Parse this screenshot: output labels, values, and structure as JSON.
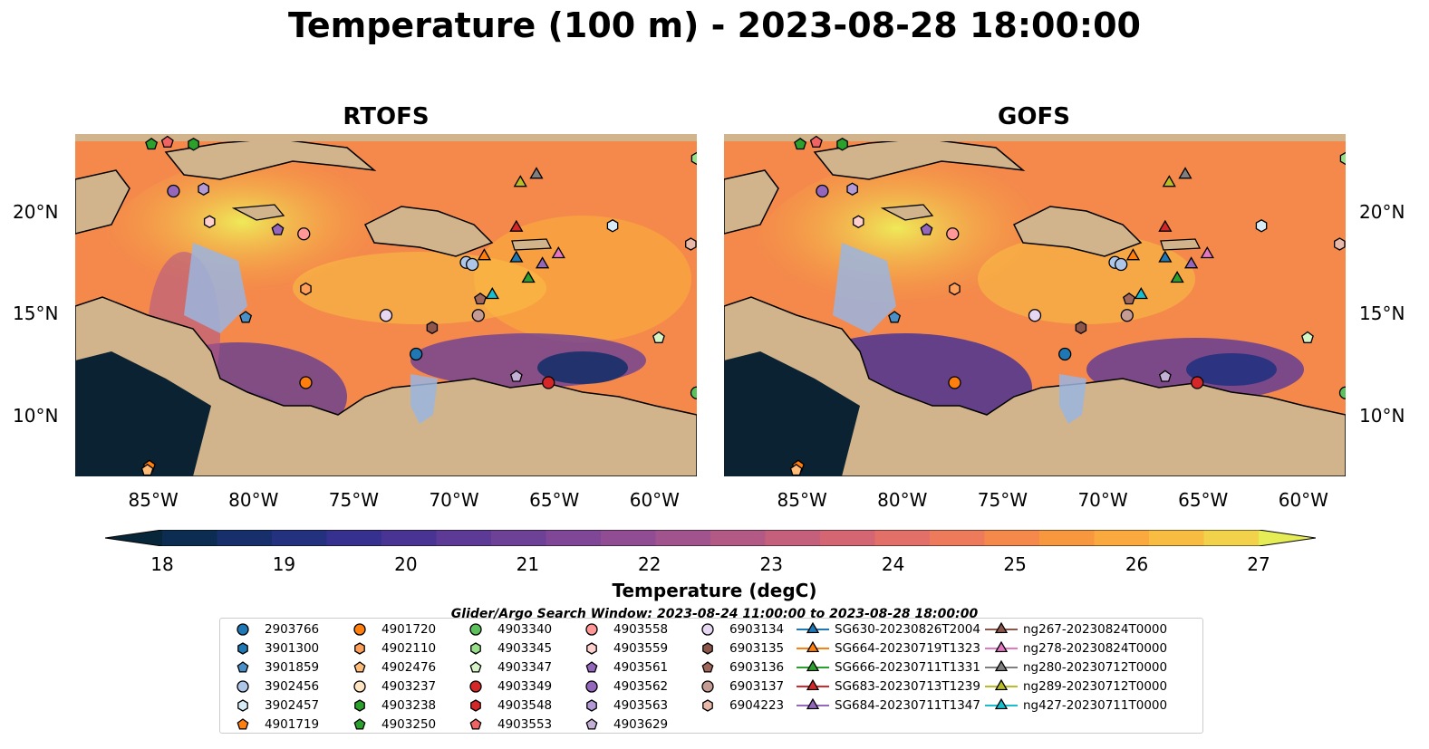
{
  "title": "Temperature (100 m) - 2023-08-28 18:00:00",
  "panels": [
    {
      "title": "RTOFS"
    },
    {
      "title": "GOFS"
    }
  ],
  "lat_ticks": [
    "20°N",
    "15°N",
    "10°N"
  ],
  "lon_ticks": [
    "85°W",
    "80°W",
    "75°W",
    "70°W",
    "65°W",
    "60°W"
  ],
  "colorbar": {
    "label": "Temperature (degC)",
    "ticks": [
      "18",
      "19",
      "20",
      "21",
      "22",
      "23",
      "24",
      "25",
      "26",
      "27"
    ],
    "min": 18,
    "max": 27,
    "colors": [
      "#07263a",
      "#0c2c52",
      "#172f6a",
      "#24317f",
      "#36318f",
      "#4a3493",
      "#5c3a96",
      "#6d4196",
      "#7f4795",
      "#904d93",
      "#a1538d",
      "#b35985",
      "#c45f7c",
      "#d46673",
      "#e26f68",
      "#ed7b5b",
      "#f4894b",
      "#f7983f",
      "#f9a93d",
      "#f8bc42",
      "#f1d24a",
      "#e6ec55"
    ]
  },
  "search_window": "Glider/Argo Search Window: 2023-08-24 11:00:00 to 2023-08-28 18:00:00",
  "legend": [
    {
      "label": "2903766",
      "marker": "circle",
      "color": "#1f77b4"
    },
    {
      "label": "3901300",
      "marker": "hexagon",
      "color": "#1f77b4"
    },
    {
      "label": "3901859",
      "marker": "pentagon",
      "color": "#4a90c8"
    },
    {
      "label": "3902456",
      "marker": "circle",
      "color": "#aec7e8"
    },
    {
      "label": "3902457",
      "marker": "hexagon",
      "color": "#d8ecf8"
    },
    {
      "label": "4901719",
      "marker": "pentagon",
      "color": "#ff7f0e"
    },
    {
      "label": "4901720",
      "marker": "circle",
      "color": "#ff7f0e"
    },
    {
      "label": "4902110",
      "marker": "hexagon",
      "color": "#ffa05a"
    },
    {
      "label": "4902476",
      "marker": "pentagon",
      "color": "#ffbb78"
    },
    {
      "label": "4903237",
      "marker": "circle",
      "color": "#ffe4c4"
    },
    {
      "label": "4903238",
      "marker": "hexagon",
      "color": "#2ca02c"
    },
    {
      "label": "4903250",
      "marker": "pentagon",
      "color": "#2ca02c"
    },
    {
      "label": "4903340",
      "marker": "circle",
      "color": "#5cc15c"
    },
    {
      "label": "4903345",
      "marker": "hexagon",
      "color": "#98df8a"
    },
    {
      "label": "4903347",
      "marker": "pentagon",
      "color": "#d5f5c8"
    },
    {
      "label": "4903349",
      "marker": "circle",
      "color": "#d62728"
    },
    {
      "label": "4903548",
      "marker": "hexagon",
      "color": "#d62728"
    },
    {
      "label": "4903553",
      "marker": "pentagon",
      "color": "#f06363"
    },
    {
      "label": "4903558",
      "marker": "circle",
      "color": "#ff9896"
    },
    {
      "label": "4903559",
      "marker": "hexagon",
      "color": "#ffd0ce"
    },
    {
      "label": "4903561",
      "marker": "pentagon",
      "color": "#9467bd"
    },
    {
      "label": "4903562",
      "marker": "circle",
      "color": "#9467bd"
    },
    {
      "label": "4903563",
      "marker": "hexagon",
      "color": "#b39ad6"
    },
    {
      "label": "4903629",
      "marker": "pentagon",
      "color": "#c5b0d5"
    },
    {
      "label": "6903134",
      "marker": "circle",
      "color": "#e6d8f2"
    },
    {
      "label": "6903135",
      "marker": "hexagon",
      "color": "#8c564b"
    },
    {
      "label": "6903136",
      "marker": "pentagon",
      "color": "#a0665a"
    },
    {
      "label": "6903137",
      "marker": "circle",
      "color": "#c49c94"
    },
    {
      "label": "6904223",
      "marker": "hexagon",
      "color": "#e8b8a8"
    },
    {
      "label": "SG630-20230826T2004",
      "marker": "triangle",
      "color": "#1f77b4"
    },
    {
      "label": "SG664-20230719T1323",
      "marker": "triangle",
      "color": "#ff7f0e"
    },
    {
      "label": "SG666-20230711T1331",
      "marker": "triangle",
      "color": "#2ca02c"
    },
    {
      "label": "SG683-20230713T1239",
      "marker": "triangle",
      "color": "#d62728"
    },
    {
      "label": "SG684-20230711T1347",
      "marker": "triangle",
      "color": "#9467bd"
    },
    {
      "label": "ng267-20230824T0000",
      "marker": "triangle",
      "color": "#8c564b"
    },
    {
      "label": "ng278-20230824T0000",
      "marker": "triangle",
      "color": "#e377c2"
    },
    {
      "label": "ng280-20230712T0000",
      "marker": "triangle",
      "color": "#7f7f7f"
    },
    {
      "label": "ng289-20230712T0000",
      "marker": "triangle",
      "color": "#bcbd22"
    },
    {
      "label": "ng427-20230711T0000",
      "marker": "triangle",
      "color": "#17becf"
    }
  ],
  "observations": [
    {
      "id": "4903250",
      "marker": "pentagon",
      "color": "#2ca02c",
      "lon": -85.2,
      "lat": 23.3
    },
    {
      "id": "4903553",
      "marker": "pentagon",
      "color": "#f06363",
      "lon": -84.4,
      "lat": 23.4
    },
    {
      "id": "4903238",
      "marker": "hexagon",
      "color": "#2ca02c",
      "lon": -83.1,
      "lat": 23.3
    },
    {
      "id": "4903562",
      "marker": "circle",
      "color": "#9467bd",
      "lon": -84.1,
      "lat": 21.0
    },
    {
      "id": "4903563",
      "marker": "hexagon",
      "color": "#b39ad6",
      "lon": -82.6,
      "lat": 21.1
    },
    {
      "id": "4903559",
      "marker": "hexagon",
      "color": "#ffd0ce",
      "lon": -82.3,
      "lat": 19.5
    },
    {
      "id": "4903561",
      "marker": "pentagon",
      "color": "#9467bd",
      "lon": -78.9,
      "lat": 19.1
    },
    {
      "id": "4903558",
      "marker": "circle",
      "color": "#ff9896",
      "lon": -77.6,
      "lat": 18.9
    },
    {
      "id": "4902110",
      "marker": "hexagon",
      "color": "#ffa05a",
      "lon": -77.5,
      "lat": 16.2
    },
    {
      "id": "3901859",
      "marker": "pentagon",
      "color": "#4a90c8",
      "lon": -80.5,
      "lat": 14.8
    },
    {
      "id": "4901720",
      "marker": "circle",
      "color": "#ff7f0e",
      "lon": -77.5,
      "lat": 11.6
    },
    {
      "id": "4901719",
      "marker": "pentagon",
      "color": "#ff7f0e",
      "lon": -85.3,
      "lat": 7.5
    },
    {
      "id": "6903134",
      "marker": "circle",
      "color": "#e6d8f2",
      "lon": -73.5,
      "lat": 14.9
    },
    {
      "id": "6903135",
      "marker": "hexagon",
      "color": "#8c564b",
      "lon": -71.2,
      "lat": 14.3
    },
    {
      "id": "2903766",
      "marker": "circle",
      "color": "#1f77b4",
      "lon": -72.0,
      "lat": 13.0
    },
    {
      "id": "3902456",
      "marker": "circle",
      "color": "#aec7e8",
      "lon": -69.5,
      "lat": 17.5
    },
    {
      "id": "3902456b",
      "marker": "circle",
      "color": "#aec7e8",
      "lon": -69.2,
      "lat": 17.4
    },
    {
      "id": "6903137",
      "marker": "circle",
      "color": "#c49c94",
      "lon": -68.9,
      "lat": 14.9
    },
    {
      "id": "6903136",
      "marker": "pentagon",
      "color": "#a0665a",
      "lon": -68.8,
      "lat": 15.7
    },
    {
      "id": "4903629",
      "marker": "pentagon",
      "color": "#c5b0d5",
      "lon": -67.0,
      "lat": 11.9
    },
    {
      "id": "4903349",
      "marker": "circle",
      "color": "#d62728",
      "lon": -65.4,
      "lat": 11.6
    },
    {
      "id": "3902457",
      "marker": "hexagon",
      "color": "#d8ecf8",
      "lon": -62.2,
      "lat": 19.3
    },
    {
      "id": "4903347",
      "marker": "pentagon",
      "color": "#d5f5c8",
      "lon": -59.9,
      "lat": 13.8
    },
    {
      "id": "4903340",
      "marker": "circle",
      "color": "#5cc15c",
      "lon": -58.0,
      "lat": 11.1
    },
    {
      "id": "4903345",
      "marker": "hexagon",
      "color": "#98df8a",
      "lon": -58.0,
      "lat": 22.6
    },
    {
      "id": "6904223",
      "marker": "hexagon",
      "color": "#e8b8a8",
      "lon": -58.3,
      "lat": 18.4
    },
    {
      "id": "4902476",
      "marker": "pentagon",
      "color": "#ffbb78",
      "lon": -85.4,
      "lat": 7.3
    },
    {
      "id": "ng289",
      "marker": "triangle",
      "color": "#bcbd22",
      "lon": -66.8,
      "lat": 21.4
    },
    {
      "id": "ng280",
      "marker": "triangle",
      "color": "#7f7f7f",
      "lon": -66.0,
      "lat": 21.8
    },
    {
      "id": "SG683",
      "marker": "triangle",
      "color": "#d62728",
      "lon": -67.0,
      "lat": 19.2
    },
    {
      "id": "SG664",
      "marker": "triangle",
      "color": "#ff7f0e",
      "lon": -68.6,
      "lat": 17.8
    },
    {
      "id": "SG630",
      "marker": "triangle",
      "color": "#1f77b4",
      "lon": -67.0,
      "lat": 17.7
    },
    {
      "id": "SG684",
      "marker": "triangle",
      "color": "#9467bd",
      "lon": -65.7,
      "lat": 17.4
    },
    {
      "id": "ng278",
      "marker": "triangle",
      "color": "#e377c2",
      "lon": -64.9,
      "lat": 17.9
    },
    {
      "id": "SG666",
      "marker": "triangle",
      "color": "#2ca02c",
      "lon": -66.4,
      "lat": 16.7
    },
    {
      "id": "ng427",
      "marker": "triangle",
      "color": "#17becf",
      "lon": -68.2,
      "lat": 15.9
    }
  ]
}
